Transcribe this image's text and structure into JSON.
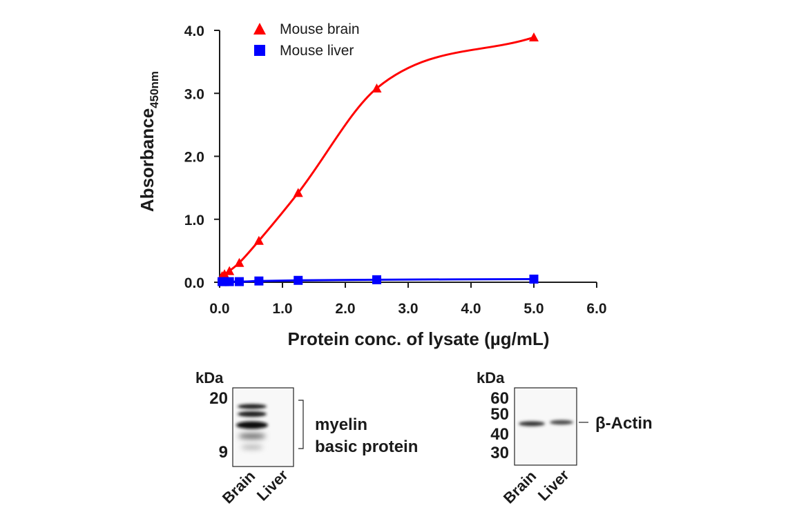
{
  "chart_data": {
    "type": "line",
    "xlabel": "Protein conc. of lysate (µg/mL)",
    "ylabel": "Absorbance",
    "ylabel_sub": "450nm",
    "xlim": [
      0,
      6
    ],
    "ylim": [
      0,
      4
    ],
    "x_ticks": [
      "0.0",
      "1.0",
      "2.0",
      "3.0",
      "4.0",
      "5.0",
      "6.0"
    ],
    "y_ticks": [
      "0.0",
      "1.0",
      "2.0",
      "3.0",
      "4.0"
    ],
    "grid": false,
    "legend_position": "top-left",
    "series": [
      {
        "name": "Mouse brain",
        "color": "#ff0000",
        "marker": "triangle",
        "x": [
          0.039,
          0.078,
          0.156,
          0.313,
          0.625,
          1.25,
          2.5,
          5.0
        ],
        "y": [
          0.1,
          0.13,
          0.18,
          0.31,
          0.66,
          1.42,
          3.08,
          3.89
        ]
      },
      {
        "name": "Mouse liver",
        "color": "#0000ff",
        "marker": "square",
        "x": [
          0.039,
          0.078,
          0.156,
          0.313,
          0.625,
          1.25,
          2.5,
          5.0
        ],
        "y": [
          0.01,
          0.01,
          0.01,
          0.01,
          0.02,
          0.03,
          0.04,
          0.05
        ]
      }
    ]
  },
  "blots": [
    {
      "unit": "kDa",
      "markers": [
        "20",
        "9"
      ],
      "lanes": [
        "Brain",
        "Liver"
      ],
      "target": [
        "myelin",
        "basic protein"
      ]
    },
    {
      "unit": "kDa",
      "markers": [
        "60",
        "50",
        "40",
        "30"
      ],
      "lanes": [
        "Brain",
        "Liver"
      ],
      "target": [
        "β-Actin"
      ]
    }
  ]
}
